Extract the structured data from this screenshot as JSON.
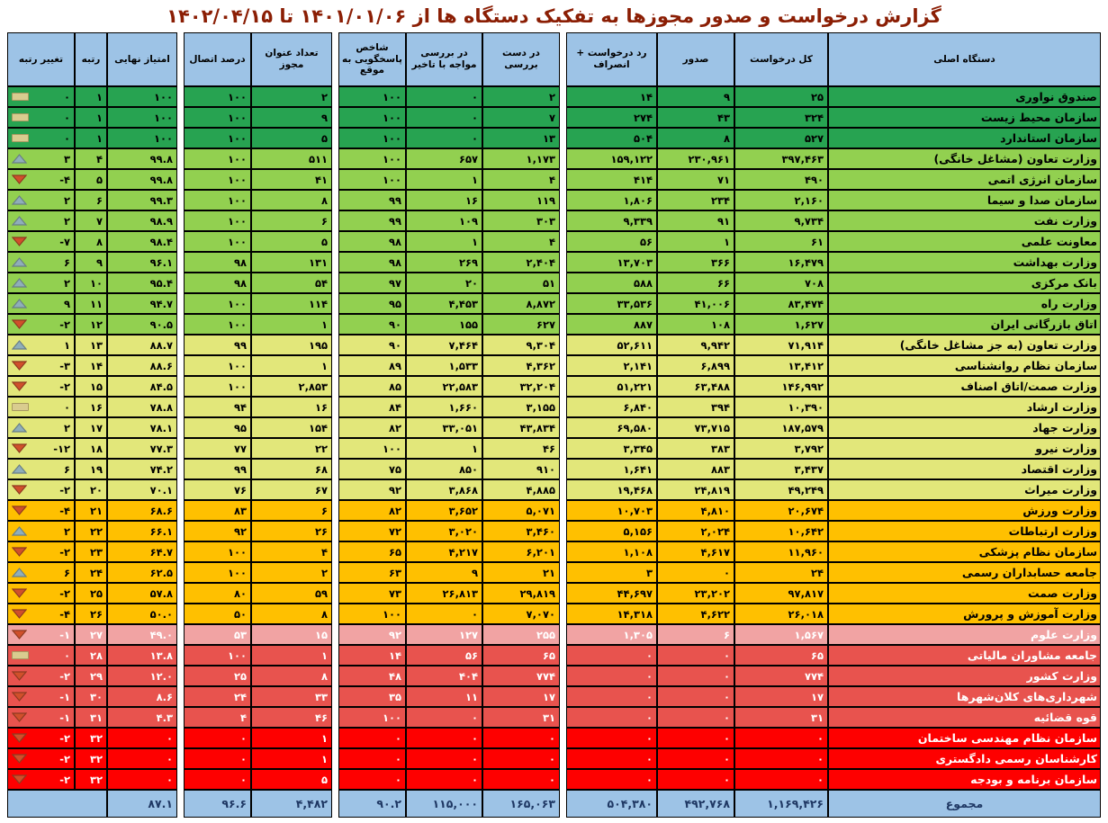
{
  "title": "گزارش درخواست و صدور مجوزها به تفکیک دستگاه ها از  ۱۴۰۱/۰۱/۰۶ تا ۱۴۰۲/۰۴/۱۵",
  "colors": {
    "title_text": "#8B1E04",
    "header_bg": "#9DC3E6",
    "tier_dark_green": "#27A351",
    "tier_light_green": "#92D050",
    "tier_yellow": "#E2E77A",
    "tier_orange": "#FFC000",
    "tier_pink": "#F1A3A3",
    "tier_red_medium": "#E8534E",
    "tier_red_bright": "#FE0000",
    "total_row_bg": "#9DC3E6",
    "rank_up_icon": "#8FAEBA",
    "rank_down_icon": "#D0502B",
    "rank_same_icon": "#D9CC8F",
    "grid_border": "#000000"
  },
  "chart_data": {
    "type": "table",
    "title": "گزارش درخواست و صدور مجوزها به تفکیک دستگاه ها از  ۱۴۰۱/۰۱/۰۶ تا ۱۴۰۲/۰۴/۱۵",
    "columns": [
      {
        "id": "org",
        "label": "دستگاه اصلی"
      },
      {
        "id": "total",
        "label": "کل درخواست"
      },
      {
        "id": "issued",
        "label": "صدور"
      },
      {
        "id": "rejected",
        "label": "رد درخواست + انصراف"
      },
      {
        "id": "reviewing",
        "label": "در دست بررسی"
      },
      {
        "id": "delayed",
        "label": "در بررسی مواجه با تاخیر"
      },
      {
        "id": "index",
        "label": "شاخص پاسخگویی به موقع"
      },
      {
        "id": "titles",
        "label": "تعداد عنوان مجوز"
      },
      {
        "id": "connection",
        "label": "درصد اتصال"
      },
      {
        "id": "score",
        "label": "امتیاز نهایی"
      },
      {
        "id": "rank",
        "label": "رتبه"
      },
      {
        "id": "change",
        "label": "تغییر رتبه"
      }
    ],
    "rows": [
      {
        "org": "صندوق نواوری",
        "total": "۲۵",
        "issued": "۹",
        "rejected": "۱۴",
        "reviewing": "۲",
        "delayed": "۰",
        "index": "۱۰۰",
        "titles": "۲",
        "connection": "۱۰۰",
        "score": "۱۰۰",
        "rank": "۱",
        "change": "۰",
        "trend": "same",
        "tier": "g1"
      },
      {
        "org": "سازمان محیط زیست",
        "total": "۳۲۴",
        "issued": "۴۳",
        "rejected": "۲۷۴",
        "reviewing": "۷",
        "delayed": "۰",
        "index": "۱۰۰",
        "titles": "۹",
        "connection": "۱۰۰",
        "score": "۱۰۰",
        "rank": "۱",
        "change": "۰",
        "trend": "same",
        "tier": "g1"
      },
      {
        "org": "سازمان استاندارد",
        "total": "۵۲۷",
        "issued": "۸",
        "rejected": "۵۰۴",
        "reviewing": "۱۳",
        "delayed": "۰",
        "index": "۱۰۰",
        "titles": "۵",
        "connection": "۱۰۰",
        "score": "۱۰۰",
        "rank": "۱",
        "change": "۰",
        "trend": "same",
        "tier": "g1"
      },
      {
        "org": "وزارت تعاون (مشاغل خانگی)",
        "total": "۳۹۷,۴۶۳",
        "issued": "۲۳۰,۹۶۱",
        "rejected": "۱۵۹,۱۲۲",
        "reviewing": "۱,۱۷۳",
        "delayed": "۶۵۷",
        "index": "۱۰۰",
        "titles": "۵۱۱",
        "connection": "۱۰۰",
        "score": "۹۹.۸",
        "rank": "۴",
        "change": "۳",
        "trend": "up",
        "tier": "g2"
      },
      {
        "org": "سازمان انرژی اتمی",
        "total": "۴۹۰",
        "issued": "۷۱",
        "rejected": "۴۱۴",
        "reviewing": "۴",
        "delayed": "۱",
        "index": "۱۰۰",
        "titles": "۴۱",
        "connection": "۱۰۰",
        "score": "۹۹.۸",
        "rank": "۵",
        "change": "-۴",
        "trend": "down",
        "tier": "g2"
      },
      {
        "org": "سازمان صدا و سیما",
        "total": "۲,۱۶۰",
        "issued": "۲۳۴",
        "rejected": "۱,۸۰۶",
        "reviewing": "۱۱۹",
        "delayed": "۱۶",
        "index": "۹۹",
        "titles": "۸",
        "connection": "۱۰۰",
        "score": "۹۹.۳",
        "rank": "۶",
        "change": "۲",
        "trend": "up",
        "tier": "g2"
      },
      {
        "org": "وزارت نفت",
        "total": "۹,۷۳۴",
        "issued": "۹۱",
        "rejected": "۹,۳۳۹",
        "reviewing": "۳۰۳",
        "delayed": "۱۰۹",
        "index": "۹۹",
        "titles": "۶",
        "connection": "۱۰۰",
        "score": "۹۸.۹",
        "rank": "۷",
        "change": "۲",
        "trend": "up",
        "tier": "g2"
      },
      {
        "org": "معاونت علمی",
        "total": "۶۱",
        "issued": "۱",
        "rejected": "۵۶",
        "reviewing": "۴",
        "delayed": "۱",
        "index": "۹۸",
        "titles": "۵",
        "connection": "۱۰۰",
        "score": "۹۸.۴",
        "rank": "۸",
        "change": "-۷",
        "trend": "down",
        "tier": "g2"
      },
      {
        "org": "وزارت بهداشت",
        "total": "۱۶,۴۷۹",
        "issued": "۳۶۶",
        "rejected": "۱۳,۷۰۳",
        "reviewing": "۲,۴۰۴",
        "delayed": "۲۶۹",
        "index": "۹۸",
        "titles": "۱۳۱",
        "connection": "۹۸",
        "score": "۹۶.۱",
        "rank": "۹",
        "change": "۶",
        "trend": "up",
        "tier": "g2"
      },
      {
        "org": "بانک مرکزی",
        "total": "۷۰۸",
        "issued": "۶۶",
        "rejected": "۵۸۸",
        "reviewing": "۵۱",
        "delayed": "۲۰",
        "index": "۹۷",
        "titles": "۵۴",
        "connection": "۹۸",
        "score": "۹۵.۴",
        "rank": "۱۰",
        "change": "۲",
        "trend": "up",
        "tier": "g2"
      },
      {
        "org": "وزارت راه",
        "total": "۸۳,۴۷۴",
        "issued": "۴۱,۰۰۶",
        "rejected": "۳۳,۵۳۶",
        "reviewing": "۸,۸۷۲",
        "delayed": "۴,۴۵۳",
        "index": "۹۵",
        "titles": "۱۱۴",
        "connection": "۱۰۰",
        "score": "۹۴.۷",
        "rank": "۱۱",
        "change": "۹",
        "trend": "up",
        "tier": "g2"
      },
      {
        "org": "اتاق بازرگانی ایران",
        "total": "۱,۶۲۷",
        "issued": "۱۰۸",
        "rejected": "۸۸۷",
        "reviewing": "۶۲۷",
        "delayed": "۱۵۵",
        "index": "۹۰",
        "titles": "۱",
        "connection": "۱۰۰",
        "score": "۹۰.۵",
        "rank": "۱۲",
        "change": "-۲",
        "trend": "down",
        "tier": "g2"
      },
      {
        "org": "وزارت تعاون (به جز مشاغل خانگی)",
        "total": "۷۱,۹۱۴",
        "issued": "۹,۹۴۲",
        "rejected": "۵۲,۶۱۱",
        "reviewing": "۹,۳۰۴",
        "delayed": "۷,۴۶۴",
        "index": "۹۰",
        "titles": "۱۹۵",
        "connection": "۹۹",
        "score": "۸۸.۷",
        "rank": "۱۳",
        "change": "۱",
        "trend": "up",
        "tier": "y"
      },
      {
        "org": "سازمان نظام روانشناسی",
        "total": "۱۳,۴۱۲",
        "issued": "۶,۸۹۹",
        "rejected": "۲,۱۴۱",
        "reviewing": "۴,۳۶۲",
        "delayed": "۱,۵۳۳",
        "index": "۸۹",
        "titles": "۱",
        "connection": "۱۰۰",
        "score": "۸۸.۶",
        "rank": "۱۴",
        "change": "-۳",
        "trend": "down",
        "tier": "y"
      },
      {
        "org": "وزارت صمت/اتاق اصناف",
        "total": "۱۴۶,۹۹۲",
        "issued": "۶۳,۴۸۸",
        "rejected": "۵۱,۲۲۱",
        "reviewing": "۳۲,۲۰۴",
        "delayed": "۲۲,۵۸۳",
        "index": "۸۵",
        "titles": "۲,۸۵۳",
        "connection": "۱۰۰",
        "score": "۸۴.۵",
        "rank": "۱۵",
        "change": "-۲",
        "trend": "down",
        "tier": "y"
      },
      {
        "org": "وزارت ارشاد",
        "total": "۱۰,۳۹۰",
        "issued": "۳۹۴",
        "rejected": "۶,۸۴۰",
        "reviewing": "۳,۱۵۵",
        "delayed": "۱,۶۶۰",
        "index": "۸۴",
        "titles": "۱۶",
        "connection": "۹۴",
        "score": "۷۸.۸",
        "rank": "۱۶",
        "change": "۰",
        "trend": "same",
        "tier": "y"
      },
      {
        "org": "وزارت جهاد",
        "total": "۱۸۷,۵۷۹",
        "issued": "۷۳,۷۱۵",
        "rejected": "۶۹,۵۸۰",
        "reviewing": "۴۳,۸۳۴",
        "delayed": "۳۳,۰۵۱",
        "index": "۸۲",
        "titles": "۱۵۴",
        "connection": "۹۵",
        "score": "۷۸.۱",
        "rank": "۱۷",
        "change": "۲",
        "trend": "up",
        "tier": "y"
      },
      {
        "org": "وزارت نیرو",
        "total": "۳,۷۹۲",
        "issued": "۳۸۳",
        "rejected": "۳,۳۴۵",
        "reviewing": "۴۶",
        "delayed": "۱",
        "index": "۱۰۰",
        "titles": "۲۲",
        "connection": "۷۷",
        "score": "۷۷.۳",
        "rank": "۱۸",
        "change": "-۱۲",
        "trend": "down",
        "tier": "y"
      },
      {
        "org": "وزارت اقتصاد",
        "total": "۳,۴۳۷",
        "issued": "۸۸۳",
        "rejected": "۱,۶۴۱",
        "reviewing": "۹۱۰",
        "delayed": "۸۵۰",
        "index": "۷۵",
        "titles": "۶۸",
        "connection": "۹۹",
        "score": "۷۴.۲",
        "rank": "۱۹",
        "change": "۶",
        "trend": "up",
        "tier": "y"
      },
      {
        "org": "وزارت میراث",
        "total": "۴۹,۲۴۹",
        "issued": "۲۴,۸۱۹",
        "rejected": "۱۹,۴۶۸",
        "reviewing": "۴,۸۸۵",
        "delayed": "۳,۸۶۸",
        "index": "۹۲",
        "titles": "۶۷",
        "connection": "۷۶",
        "score": "۷۰.۱",
        "rank": "۲۰",
        "change": "-۲",
        "trend": "down",
        "tier": "y"
      },
      {
        "org": "وزارت ورزش",
        "total": "۲۰,۶۷۴",
        "issued": "۴,۸۱۰",
        "rejected": "۱۰,۷۰۳",
        "reviewing": "۵,۰۷۱",
        "delayed": "۳,۶۵۲",
        "index": "۸۲",
        "titles": "۶",
        "connection": "۸۳",
        "score": "۶۸.۶",
        "rank": "۲۱",
        "change": "-۴",
        "trend": "down",
        "tier": "o"
      },
      {
        "org": "وزارت ارتباطات",
        "total": "۱۰,۶۴۲",
        "issued": "۲,۰۲۴",
        "rejected": "۵,۱۵۶",
        "reviewing": "۳,۴۶۰",
        "delayed": "۳,۰۲۰",
        "index": "۷۲",
        "titles": "۲۶",
        "connection": "۹۲",
        "score": "۶۶.۱",
        "rank": "۲۲",
        "change": "۲",
        "trend": "up",
        "tier": "o"
      },
      {
        "org": "سازمان نظام پزشکی",
        "total": "۱۱,۹۶۰",
        "issued": "۴,۶۱۷",
        "rejected": "۱,۱۰۸",
        "reviewing": "۶,۲۰۱",
        "delayed": "۴,۲۱۷",
        "index": "۶۵",
        "titles": "۴",
        "connection": "۱۰۰",
        "score": "۶۴.۷",
        "rank": "۲۳",
        "change": "-۲",
        "trend": "down",
        "tier": "o"
      },
      {
        "org": "جامعه حسابداران رسمی",
        "total": "۲۴",
        "issued": "۰",
        "rejected": "۳",
        "reviewing": "۲۱",
        "delayed": "۹",
        "index": "۶۳",
        "titles": "۲",
        "connection": "۱۰۰",
        "score": "۶۲.۵",
        "rank": "۲۴",
        "change": "۶",
        "trend": "up",
        "tier": "o"
      },
      {
        "org": "وزارت صمت",
        "total": "۹۷,۸۱۷",
        "issued": "۲۳,۲۰۲",
        "rejected": "۴۴,۶۹۷",
        "reviewing": "۲۹,۸۱۹",
        "delayed": "۲۶,۸۱۳",
        "index": "۷۳",
        "titles": "۵۹",
        "connection": "۸۰",
        "score": "۵۷.۸",
        "rank": "۲۵",
        "change": "-۲",
        "trend": "down",
        "tier": "o"
      },
      {
        "org": "وزارت آموزش و پرورش",
        "total": "۲۶,۰۱۸",
        "issued": "۴,۶۲۲",
        "rejected": "۱۴,۳۱۸",
        "reviewing": "۷,۰۷۰",
        "delayed": "۰",
        "index": "۱۰۰",
        "titles": "۸",
        "connection": "۵۰",
        "score": "۵۰.۰",
        "rank": "۲۶",
        "change": "-۴",
        "trend": "down",
        "tier": "o"
      },
      {
        "org": "وزارت علوم",
        "total": "۱,۵۶۷",
        "issued": "۶",
        "rejected": "۱,۳۰۵",
        "reviewing": "۲۵۵",
        "delayed": "۱۲۷",
        "index": "۹۲",
        "titles": "۱۵",
        "connection": "۵۳",
        "score": "۴۹.۰",
        "rank": "۲۷",
        "change": "-۱",
        "trend": "down",
        "tier": "p"
      },
      {
        "org": "جامعه مشاوران مالیاتی",
        "total": "۶۵",
        "issued": "۰",
        "rejected": "۰",
        "reviewing": "۶۵",
        "delayed": "۵۶",
        "index": "۱۴",
        "titles": "۱",
        "connection": "۱۰۰",
        "score": "۱۳.۸",
        "rank": "۲۸",
        "change": "۰",
        "trend": "same",
        "tier": "r1"
      },
      {
        "org": "وزارت کشور",
        "total": "۷۷۴",
        "issued": "۰",
        "rejected": "۰",
        "reviewing": "۷۷۴",
        "delayed": "۴۰۴",
        "index": "۴۸",
        "titles": "۸",
        "connection": "۲۵",
        "score": "۱۲.۰",
        "rank": "۲۹",
        "change": "-۲",
        "trend": "down",
        "tier": "r1"
      },
      {
        "org": "شهرداری‌های کلان‌شهرها",
        "total": "۱۷",
        "issued": "۰",
        "rejected": "۰",
        "reviewing": "۱۷",
        "delayed": "۱۱",
        "index": "۳۵",
        "titles": "۳۳",
        "connection": "۲۴",
        "score": "۸.۶",
        "rank": "۳۰",
        "change": "-۱",
        "trend": "down",
        "tier": "r1"
      },
      {
        "org": "قوه قضائیه",
        "total": "۳۱",
        "issued": "۰",
        "rejected": "۰",
        "reviewing": "۳۱",
        "delayed": "۰",
        "index": "۱۰۰",
        "titles": "۴۶",
        "connection": "۴",
        "score": "۴.۳",
        "rank": "۳۱",
        "change": "-۱",
        "trend": "down",
        "tier": "r1"
      },
      {
        "org": "سازمان نظام مهندسی ساختمان",
        "total": "۰",
        "issued": "۰",
        "rejected": "۰",
        "reviewing": "۰",
        "delayed": "۰",
        "index": "۰",
        "titles": "۱",
        "connection": "۰",
        "score": "۰",
        "rank": "۳۲",
        "change": "-۲",
        "trend": "down",
        "tier": "r2"
      },
      {
        "org": "کارشناسان رسمی دادگستری",
        "total": "۰",
        "issued": "۰",
        "rejected": "۰",
        "reviewing": "۰",
        "delayed": "۰",
        "index": "۰",
        "titles": "۱",
        "connection": "۰",
        "score": "۰",
        "rank": "۳۲",
        "change": "-۲",
        "trend": "down",
        "tier": "r2"
      },
      {
        "org": "سازمان برنامه و بودجه",
        "total": "۰",
        "issued": "۰",
        "rejected": "۰",
        "reviewing": "۰",
        "delayed": "۰",
        "index": "۰",
        "titles": "۵",
        "connection": "۰",
        "score": "۰",
        "rank": "۳۲",
        "change": "-۲",
        "trend": "down",
        "tier": "r2"
      }
    ],
    "total_row": {
      "org": "مجموع",
      "total": "۱,۱۶۹,۴۲۶",
      "issued": "۴۹۲,۷۶۸",
      "rejected": "۵۰۴,۳۸۰",
      "reviewing": "۱۶۵,۰۶۳",
      "delayed": "۱۱۵,۰۰۰",
      "index": "۹۰.۲",
      "titles": "۴,۴۸۲",
      "connection": "۹۶.۶",
      "score": "۸۷.۱"
    }
  }
}
